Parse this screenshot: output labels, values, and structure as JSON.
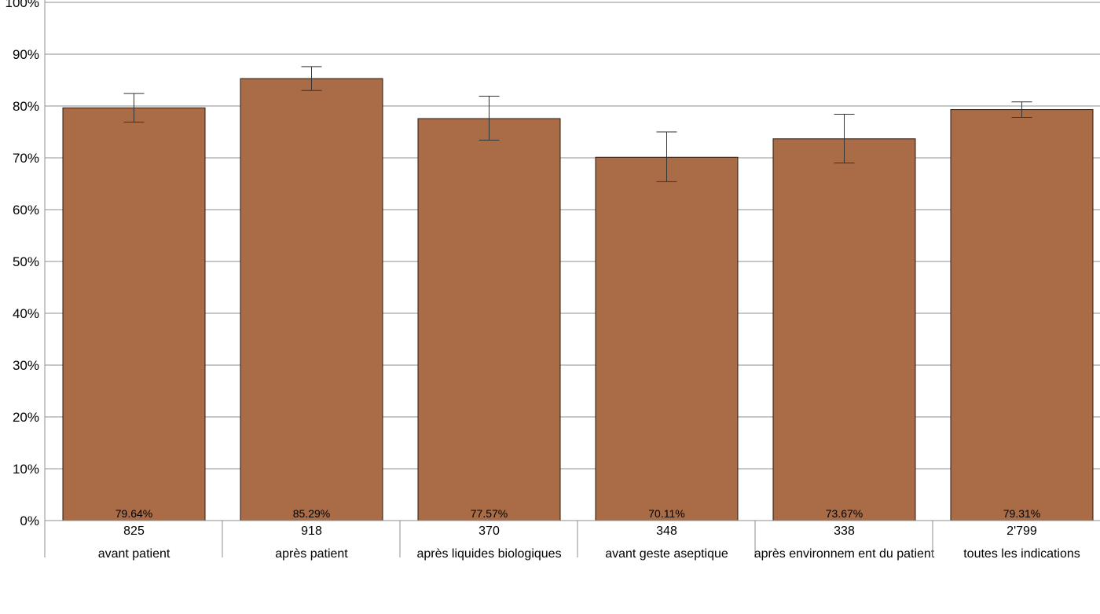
{
  "chart_data": {
    "type": "bar",
    "categories": [
      {
        "count": "825",
        "label": "avant patient"
      },
      {
        "count": "918",
        "label": "après patient"
      },
      {
        "count": "370",
        "label": "après liquides biologiques"
      },
      {
        "count": "348",
        "label": "avant geste aseptique"
      },
      {
        "count": "338",
        "label": "après environnem ent du patient"
      },
      {
        "count": "2'799",
        "label": "toutes les indications"
      }
    ],
    "values": [
      79.64,
      85.29,
      77.57,
      70.11,
      73.67,
      79.31
    ],
    "value_labels": [
      "79.64%",
      "85.29%",
      "77.57%",
      "70.11%",
      "73.67%",
      "79.31%"
    ],
    "error_low": [
      76.9,
      83.0,
      73.4,
      65.4,
      69.0,
      77.8
    ],
    "error_high": [
      82.4,
      87.6,
      81.9,
      75.0,
      78.4,
      80.8
    ],
    "yticks": [
      "0%",
      "10%",
      "20%",
      "30%",
      "40%",
      "50%",
      "60%",
      "70%",
      "80%",
      "90%",
      "100%"
    ],
    "ylim": [
      0,
      100
    ],
    "grid": true,
    "bar_color": "#a96c47"
  }
}
